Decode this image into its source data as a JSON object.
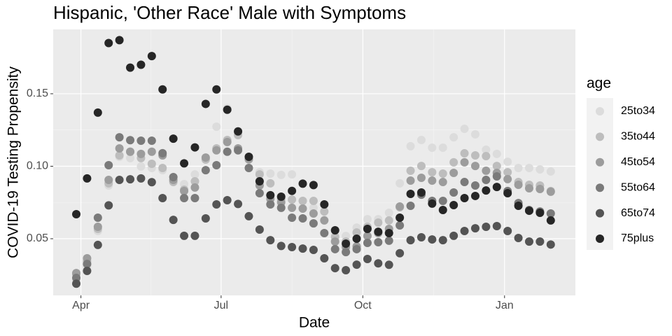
{
  "chart_data": {
    "type": "scatter",
    "title": "Hispanic, 'Other Race' Male with Symptoms",
    "x_label": "Date",
    "y_label": "COVID-19 Testing Propensity",
    "legend_title": "age",
    "legend_position": "right",
    "grid": true,
    "xlim": [
      -18,
      321
    ],
    "ylim": [
      0.0109,
      0.1944
    ],
    "xticks": [
      {
        "value": 0,
        "label": "Apr"
      },
      {
        "value": 91,
        "label": "Jul"
      },
      {
        "value": 183,
        "label": "Oct"
      },
      {
        "value": 275,
        "label": "Jan"
      }
    ],
    "yticks": [
      0.05,
      {
        "value": 0.1,
        "label": "0.10"
      },
      0.15
    ],
    "x": [
      -3,
      4,
      11,
      18,
      25,
      32,
      39,
      46,
      53,
      60,
      67,
      74,
      81,
      88,
      95,
      102,
      109,
      116,
      123,
      130,
      137,
      144,
      151,
      158,
      165,
      172,
      179,
      186,
      193,
      200,
      207,
      214,
      221,
      228,
      235,
      242,
      249,
      256,
      263,
      270,
      277,
      284,
      291,
      298,
      305
    ],
    "series": [
      {
        "name": "25to34",
        "color": "#dcdcdc",
        "values": [
          0.0215,
          0.0312,
          0.0553,
          0.0867,
          0.1065,
          0.1056,
          0.0998,
          0.0988,
          0.0973,
          0.0901,
          0.0877,
          0.0944,
          0.1056,
          0.1273,
          0.14,
          0.1225,
          0.1046,
          0.0959,
          0.0949,
          0.094,
          0.0944,
          0.0761,
          0.0713,
          0.063,
          0.0505,
          0.0519,
          0.0577,
          0.0635,
          0.0635,
          0.0679,
          0.0882,
          0.1138,
          0.1181,
          0.1128,
          0.1128,
          0.12,
          0.1258,
          0.122,
          0.1114,
          0.1085,
          0.1031,
          0.0988,
          0.0988,
          0.0978,
          0.0964
        ]
      },
      {
        "name": "35to44",
        "color": "#bdbdbd",
        "values": [
          0.0254,
          0.0345,
          0.0568,
          0.0882,
          0.1075,
          0.11,
          0.1056,
          0.1017,
          0.0988,
          0.0891,
          0.0838,
          0.0896,
          0.1046,
          0.1123,
          0.1181,
          0.1215,
          0.1046,
          0.0944,
          0.0882,
          0.0775,
          0.077,
          0.0761,
          0.0761,
          0.0688,
          0.0514,
          0.048,
          0.0543,
          0.0582,
          0.0611,
          0.0626,
          0.0717,
          0.0969,
          0.1002,
          0.0959,
          0.0949,
          0.1027,
          0.1089,
          0.1075,
          0.107,
          0.1002,
          0.0959,
          0.0891,
          0.0872,
          0.0867,
          0.0829
        ]
      },
      {
        "name": "45to54",
        "color": "#9c9c9c",
        "values": [
          0.0263,
          0.0365,
          0.0582,
          0.0906,
          0.1123,
          0.11,
          0.1085,
          0.11,
          0.1075,
          0.0906,
          0.0829,
          0.0853,
          0.106,
          0.111,
          0.1167,
          0.1123,
          0.105,
          0.0867,
          0.0775,
          0.0751,
          0.0713,
          0.0708,
          0.0674,
          0.0626,
          0.048,
          0.0442,
          0.0447,
          0.0519,
          0.0539,
          0.0568,
          0.0722,
          0.0901,
          0.092,
          0.0901,
          0.0891,
          0.0954,
          0.1027,
          0.1002,
          0.0969,
          0.0954,
          0.0911,
          0.0872,
          0.0848,
          0.0843,
          0.0824
        ]
      },
      {
        "name": "55to64",
        "color": "#7a7a7a",
        "values": [
          0.023,
          0.0326,
          0.0645,
          0.1007,
          0.12,
          0.118,
          0.1176,
          0.1176,
          0.109,
          0.0925,
          0.078,
          0.078,
          0.0973,
          0.1007,
          0.11,
          0.111,
          0.0988,
          0.0814,
          0.0737,
          0.0713,
          0.0645,
          0.064,
          0.0606,
          0.0539,
          0.0428,
          0.0408,
          0.0428,
          0.0471,
          0.0476,
          0.0486,
          0.0592,
          0.0727,
          0.0804,
          0.0761,
          0.0761,
          0.0819,
          0.0891,
          0.0867,
          0.0906,
          0.093,
          0.0829,
          0.0746,
          0.0698,
          0.0688,
          0.0674
        ]
      },
      {
        "name": "65to74",
        "color": "#545454",
        "values": [
          0.019,
          0.0278,
          0.0457,
          0.073,
          0.0906,
          0.091,
          0.0916,
          0.089,
          0.078,
          0.063,
          0.052,
          0.052,
          0.064,
          0.0737,
          0.0766,
          0.074,
          0.0655,
          0.0563,
          0.049,
          0.045,
          0.0442,
          0.0432,
          0.0423,
          0.0365,
          0.0297,
          0.0283,
          0.0321,
          0.036,
          0.033,
          0.032,
          0.04,
          0.049,
          0.051,
          0.0495,
          0.049,
          0.052,
          0.0553,
          0.0572,
          0.0582,
          0.0587,
          0.0553,
          0.0505,
          0.048,
          0.048,
          0.046
        ]
      },
      {
        "name": "75plus",
        "color": "#262626",
        "values": [
          0.0669,
          0.0916,
          0.137,
          0.185,
          0.187,
          0.168,
          0.17,
          0.176,
          0.153,
          0.119,
          0.102,
          0.113,
          0.143,
          0.153,
          0.139,
          0.124,
          0.1065,
          0.0896,
          0.08,
          0.079,
          0.083,
          0.088,
          0.087,
          0.0737,
          0.0558,
          0.0466,
          0.05,
          0.0568,
          0.0548,
          0.0539,
          0.0645,
          0.0809,
          0.0819,
          0.0742,
          0.0698,
          0.0732,
          0.078,
          0.0795,
          0.0833,
          0.0857,
          0.0814,
          0.0727,
          0.0693,
          0.0679,
          0.0626
        ]
      }
    ]
  }
}
